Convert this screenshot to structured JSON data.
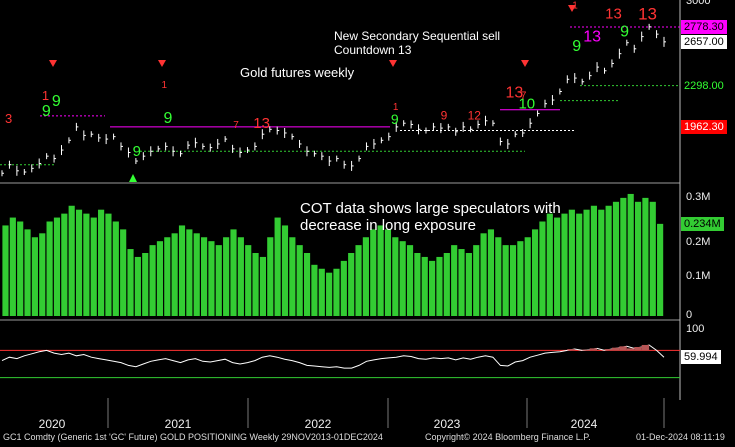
{
  "annotations": {
    "sequential_line1": "New Secondary Sequential sell",
    "sequential_line2": "Countdown 13",
    "gold_label": "Gold futures weekly",
    "cot_line1": "COT data shows large speculators with",
    "cot_line2": "decrease in long exposure"
  },
  "footer": {
    "left": "GC1 Comdty (Generic 1st 'GC' Future) GOLD POSITIONING  Weekly 29NOV2013-01DEC2024",
    "center": "Copyright© 2024 Bloomberg Finance L.P.",
    "right": "01-Dec-2024 08:11:19"
  },
  "price_tags": [
    {
      "label": "2778.30",
      "bg": "#ff00ff",
      "fg": "#000000"
    },
    {
      "label": "2657.00",
      "bg": "#ffffff",
      "fg": "#000000"
    },
    {
      "label": "2298.00",
      "bg": "#000000",
      "fg": "#33ff33"
    },
    {
      "label": "1962.30",
      "bg": "#ff0000",
      "fg": "#ffffff"
    }
  ],
  "cot_tag": {
    "label": "0.234M",
    "bg": "#33cc33",
    "fg": "#000000"
  },
  "rsi_tag": {
    "label": "59.994",
    "bg": "#ffffff",
    "fg": "#000000"
  },
  "colors": {
    "price": "#ffffff",
    "cot_bars": "#33cc33",
    "rsi_line": "#ffffff",
    "rsi_upper": "#ff3333",
    "rsi_lower": "#33cc33",
    "resistance": "#ff00ff",
    "support": "#33cc33",
    "sell_count": "#ff3333",
    "buy_count": "#33ff33"
  },
  "chart_data": [
    {
      "type": "line",
      "series": [
        {
          "values": [
            1580,
            1650,
            1600,
            1590,
            1620,
            1660,
            1720,
            1700,
            1770,
            1850,
            1960,
            1890,
            1900,
            1870,
            1860,
            1880,
            1800,
            1750,
            1680,
            1720,
            1760,
            1780,
            1800,
            1760,
            1740,
            1810,
            1830,
            1800,
            1790,
            1820,
            1860,
            1780,
            1750,
            1770,
            1800,
            1900,
            1940,
            1930,
            1910,
            1880,
            1820,
            1760,
            1740,
            1720,
            1680,
            1700,
            1650,
            1640,
            1700,
            1800,
            1820,
            1850,
            1880,
            1960,
            1990,
            1980,
            1940,
            1930,
            1960,
            1950,
            1960,
            1920,
            1960,
            1940,
            1980,
            2010,
            1990,
            1840,
            1820,
            1900,
            1910,
            1990,
            2070,
            2150,
            2180,
            2250,
            2350,
            2360,
            2330,
            2380,
            2450,
            2420,
            2480,
            2560,
            2650,
            2600,
            2700,
            2780,
            2720,
            2657
          ]
        }
      ],
      "ylim": [
        1500,
        3000
      ],
      "yticks": [
        3000
      ]
    },
    {
      "type": "bar",
      "series": [
        {
          "values": [
            0.23,
            0.25,
            0.24,
            0.22,
            0.2,
            0.21,
            0.24,
            0.25,
            0.26,
            0.28,
            0.27,
            0.26,
            0.25,
            0.27,
            0.26,
            0.24,
            0.22,
            0.17,
            0.15,
            0.16,
            0.18,
            0.19,
            0.2,
            0.21,
            0.23,
            0.22,
            0.21,
            0.2,
            0.19,
            0.18,
            0.2,
            0.22,
            0.2,
            0.18,
            0.16,
            0.15,
            0.2,
            0.25,
            0.23,
            0.2,
            0.18,
            0.16,
            0.13,
            0.12,
            0.11,
            0.12,
            0.14,
            0.16,
            0.18,
            0.2,
            0.22,
            0.23,
            0.22,
            0.2,
            0.19,
            0.18,
            0.16,
            0.15,
            0.14,
            0.15,
            0.16,
            0.18,
            0.17,
            0.16,
            0.18,
            0.21,
            0.22,
            0.2,
            0.18,
            0.18,
            0.19,
            0.2,
            0.22,
            0.24,
            0.26,
            0.25,
            0.26,
            0.27,
            0.26,
            0.27,
            0.28,
            0.27,
            0.28,
            0.29,
            0.3,
            0.31,
            0.29,
            0.3,
            0.29,
            0.234
          ]
        }
      ],
      "ylim": [
        0,
        0.32
      ],
      "yticks": [
        {
          "value": 0.3,
          "label": "0.3M"
        },
        {
          "value": 0.2,
          "label": "0.2M"
        },
        {
          "value": 0.1,
          "label": "0.1M"
        },
        {
          "value": 0,
          "label": "0"
        }
      ]
    },
    {
      "type": "line",
      "series": [
        {
          "values": [
            55,
            60,
            58,
            62,
            65,
            68,
            70,
            66,
            64,
            66,
            62,
            64,
            60,
            58,
            56,
            54,
            52,
            48,
            46,
            50,
            54,
            56,
            58,
            55,
            52,
            56,
            58,
            54,
            53,
            55,
            57,
            52,
            50,
            52,
            55,
            60,
            62,
            60,
            57,
            55,
            52,
            48,
            47,
            46,
            45,
            46,
            44,
            44,
            48,
            54,
            56,
            58,
            59,
            60,
            62,
            61,
            58,
            57,
            59,
            58,
            59,
            56,
            59,
            57,
            60,
            62,
            60,
            48,
            47,
            53,
            55,
            60,
            63,
            66,
            67,
            68,
            70,
            72,
            70,
            71,
            73,
            70,
            72,
            74,
            76,
            73,
            75,
            78,
            70,
            60
          ]
        }
      ],
      "ylim": [
        0,
        100
      ],
      "upper": 70,
      "lower": 30,
      "yticks": [
        100
      ]
    }
  ],
  "x_axis": {
    "labels": [
      "2020",
      "2021",
      "2022",
      "2023",
      "2024"
    ]
  }
}
